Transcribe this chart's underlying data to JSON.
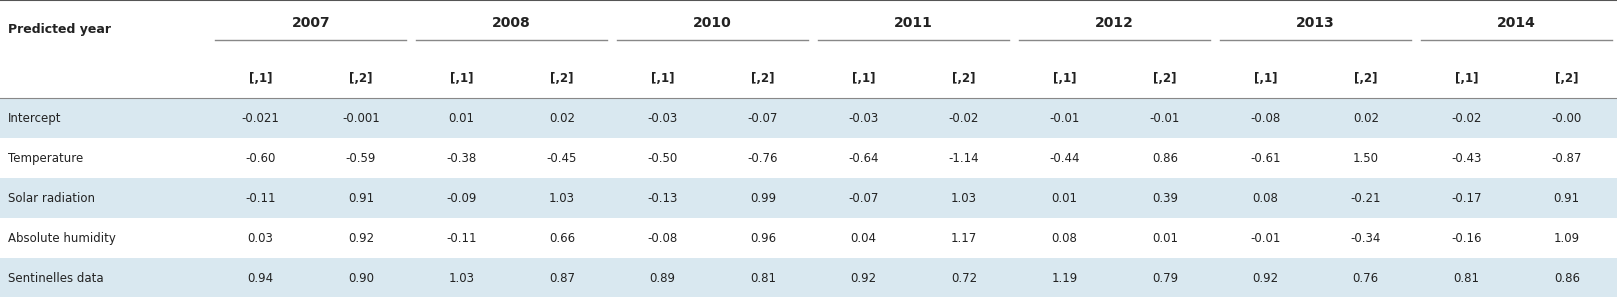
{
  "col_header_years": [
    "2007",
    "2008",
    "2010",
    "2011",
    "2012",
    "2013",
    "2014"
  ],
  "col_header_sub": [
    "[,1]",
    "[,2]"
  ],
  "row_labels": [
    "Intercept",
    "Temperature",
    "Solar radiation",
    "Absolute humidity",
    "Sentinelles data"
  ],
  "data": [
    [
      "-0.021",
      "-0.001",
      "0.01",
      "0.02",
      "-0.03",
      "-0.07",
      "-0.03",
      "-0.02",
      "-0.01",
      "-0.01",
      "-0.08",
      "0.02",
      "-0.02",
      "-0.00"
    ],
    [
      "-0.60",
      "-0.59",
      "-0.38",
      "-0.45",
      "-0.50",
      "-0.76",
      "-0.64",
      "-1.14",
      "-0.44",
      "0.86",
      "-0.61",
      "1.50",
      "-0.43",
      "-0.87"
    ],
    [
      "-0.11",
      "0.91",
      "-0.09",
      "1.03",
      "-0.13",
      "0.99",
      "-0.07",
      "1.03",
      "0.01",
      "0.39",
      "0.08",
      "-0.21",
      "-0.17",
      "0.91"
    ],
    [
      "0.03",
      "0.92",
      "-0.11",
      "0.66",
      "-0.08",
      "0.96",
      "0.04",
      "1.17",
      "0.08",
      "0.01",
      "-0.01",
      "-0.34",
      "-0.16",
      "1.09"
    ],
    [
      "0.94",
      "0.90",
      "1.03",
      "0.87",
      "0.89",
      "0.81",
      "0.92",
      "0.72",
      "1.19",
      "0.79",
      "0.92",
      "0.76",
      "0.81",
      "0.86"
    ]
  ],
  "bg_color_odd": "#d9e8f0",
  "bg_color_even": "#ffffff",
  "header_bg": "#ffffff",
  "text_color": "#222222",
  "figsize": [
    16.17,
    2.97
  ],
  "dpi": 100
}
